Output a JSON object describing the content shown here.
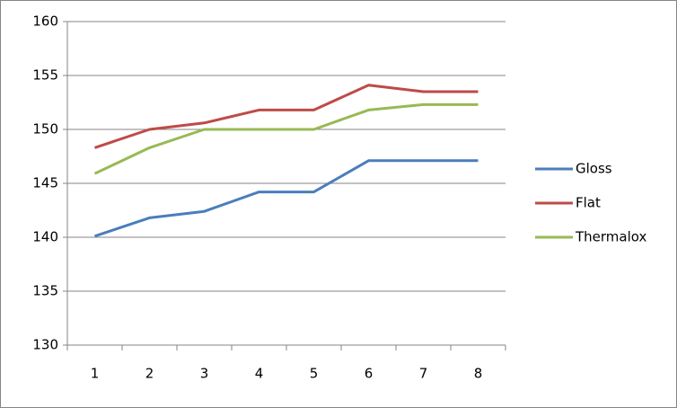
{
  "chart_data": {
    "type": "line",
    "categories": [
      "1",
      "2",
      "3",
      "4",
      "5",
      "6",
      "7",
      "8"
    ],
    "series": [
      {
        "name": "Gloss",
        "color": "#4a7ebb",
        "values": [
          140.1,
          141.8,
          142.4,
          144.2,
          144.2,
          147.1,
          147.1,
          147.1
        ]
      },
      {
        "name": "Flat",
        "color": "#be4b48",
        "values": [
          148.3,
          150.0,
          150.6,
          151.8,
          151.8,
          154.1,
          153.5,
          153.5
        ]
      },
      {
        "name": "Thermalox",
        "color": "#98b954",
        "values": [
          145.9,
          148.3,
          150.0,
          150.0,
          150.0,
          151.8,
          152.3,
          152.3
        ]
      }
    ],
    "ylim": [
      130,
      160
    ],
    "yticks": [
      130,
      135,
      140,
      145,
      150,
      155,
      160
    ],
    "grid": true,
    "legend": "right"
  }
}
